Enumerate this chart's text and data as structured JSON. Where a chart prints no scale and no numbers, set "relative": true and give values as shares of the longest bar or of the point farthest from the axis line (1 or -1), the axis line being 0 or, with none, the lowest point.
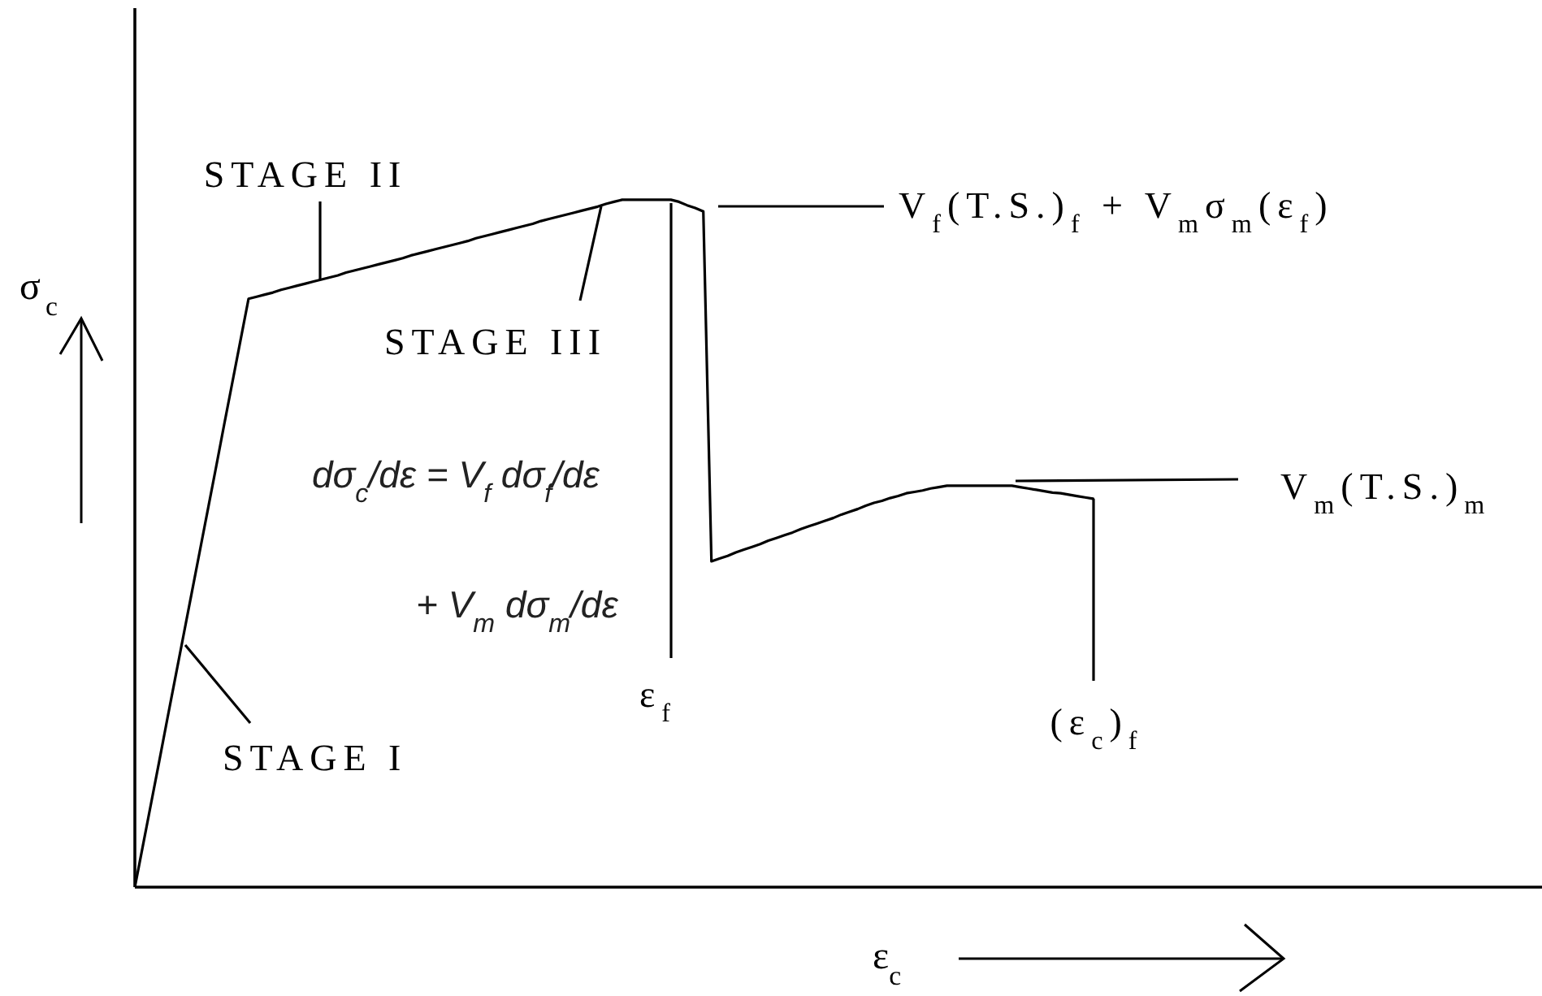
{
  "chart_data": {
    "type": "line",
    "relative": true,
    "xlabel": "ε$_{c}$",
    "ylabel": "σ$_{c}$",
    "categories": [
      null,
      null,
      null,
      null,
      null,
      null,
      null,
      null,
      null,
      null,
      null,
      null,
      null,
      null,
      null,
      null,
      null,
      null,
      null,
      null,
      null,
      null,
      null,
      null,
      null,
      null,
      null,
      null,
      null,
      null,
      null,
      null,
      null,
      null,
      null,
      null,
      null,
      null,
      null,
      null,
      null,
      null,
      null,
      null,
      null,
      null,
      null,
      null,
      null,
      null,
      null,
      null,
      null,
      null,
      null,
      null,
      null,
      null,
      null,
      null,
      null,
      null,
      null,
      null,
      null,
      null,
      null,
      null,
      null,
      null,
      null,
      null,
      null,
      null,
      null,
      null,
      null,
      null,
      null,
      null,
      null,
      null,
      null,
      null,
      null,
      null,
      null,
      null,
      null,
      null,
      null,
      null,
      null,
      null,
      null,
      null,
      null,
      null,
      null,
      null,
      null,
      null,
      null,
      null,
      null,
      null,
      null,
      null,
      null,
      null,
      null,
      null,
      null,
      null,
      null,
      null,
      null,
      null,
      null
    ],
    "values": [
      0,
      0.061,
      0.122,
      0.183,
      0.245,
      0.306,
      0.367,
      0.428,
      0.489,
      0.55,
      0.611,
      0.673,
      0.734,
      0.795,
      0.856,
      0.859,
      0.862,
      0.865,
      0.869,
      0.872,
      0.875,
      0.878,
      0.881,
      0.884,
      0.887,
      0.89,
      0.894,
      0.897,
      0.9,
      0.903,
      0.906,
      0.909,
      0.912,
      0.915,
      0.919,
      0.922,
      0.925,
      0.928,
      0.931,
      0.934,
      0.937,
      0.94,
      0.944,
      0.947,
      0.95,
      0.953,
      0.956,
      0.959,
      0.962,
      0.965,
      0.969,
      0.972,
      0.975,
      0.978,
      0.981,
      0.984,
      0.987,
      0.99,
      0.994,
      0.997,
      1,
      1,
      1,
      1,
      1,
      1,
      1,
      0.997,
      0.992,
      0.988,
      0.983,
      0.474,
      0.478,
      0.482,
      0.487,
      0.491,
      0.495,
      0.499,
      0.504,
      0.508,
      0.512,
      0.516,
      0.521,
      0.525,
      0.529,
      0.533,
      0.537,
      0.542,
      0.546,
      0.55,
      0.555,
      0.559,
      0.562,
      0.566,
      0.569,
      0.573,
      0.575,
      0.577,
      0.58,
      0.582,
      0.584,
      0.584,
      0.584,
      0.584,
      0.584,
      0.584,
      0.584,
      0.584,
      0.584,
      0.582,
      0.58,
      0.578,
      0.576,
      0.574,
      0.573,
      0.571,
      0.569,
      0.567,
      0.565
    ],
    "color": "#000000",
    "line_style": "solid",
    "marker": "none",
    "annotations": [
      "STAGE II",
      "V$_{f}$(T.S.)$_{f}$ + V$_{m}$σ$_{m}$(ε$_{f}$)",
      "STAGE III",
      "dσ$_{c}$/dε = V$_{f}$ dσ$_{f}$/dε\n+ V$_{m}$ dσ$_{m}$/dε",
      "V$_{m}$(T.S.)$_{m}$",
      "ε$_{f}$",
      "(ε$_{c}$)$_{f}$",
      "STAGE I"
    ]
  }
}
